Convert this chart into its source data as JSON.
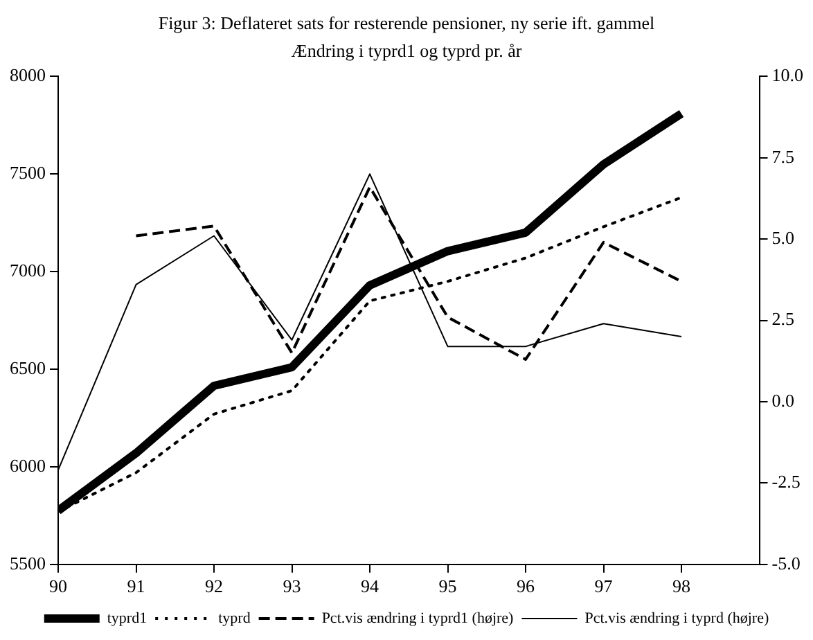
{
  "chart_data": {
    "type": "line",
    "title": "Figur 3: Deflateret sats for resterende pensioner, ny serie ift. gammel",
    "subtitle": "Ændring i typrd1 og typrd pr. år",
    "x": [
      90,
      91,
      92,
      93,
      94,
      95,
      96,
      97,
      98
    ],
    "xlim": [
      90,
      99
    ],
    "xticks": [
      90,
      91,
      92,
      93,
      94,
      95,
      96,
      97,
      98
    ],
    "ylim": [
      5500,
      8000
    ],
    "yticks": [
      5500,
      6000,
      6500,
      7000,
      7500,
      8000
    ],
    "y2lim": [
      -5,
      10
    ],
    "y2ticks": [
      {
        "value": -5,
        "label": "-5.0"
      },
      {
        "value": -2.5,
        "label": "-2.5"
      },
      {
        "value": 0,
        "label": "0.0"
      },
      {
        "value": 2.5,
        "label": "2.5"
      },
      {
        "value": 5,
        "label": "5.0"
      },
      {
        "value": 7.5,
        "label": "7.5"
      },
      {
        "value": 10,
        "label": "10.0"
      }
    ],
    "grid": false,
    "legend": "bottom",
    "marker": "none",
    "series": [
      {
        "name": "typrd1",
        "color": "#000000",
        "line_style": "solid",
        "values": [
          5775,
          6070,
          6415,
          6510,
          6930,
          7105,
          7200,
          7550,
          7810
        ]
      },
      {
        "name": "typrd",
        "color": "#000000",
        "line_style": "dotted",
        "values": [
          5770,
          5970,
          6270,
          6390,
          6850,
          6950,
          7070,
          7230,
          7380
        ]
      },
      {
        "name": "Pct.vis ændring i typrd1 (højre)",
        "color": "#000000",
        "line_style": "dashed",
        "axis": "y2",
        "values": [
          null,
          5.1,
          5.4,
          1.5,
          6.6,
          2.6,
          1.3,
          4.9,
          3.7
        ]
      },
      {
        "name": "Pct.vis ændring i typrd (højre)",
        "color": "#000000",
        "line_style": "solid",
        "axis": "y2",
        "values": [
          -2.1,
          3.6,
          5.1,
          1.9,
          7.0,
          1.7,
          1.7,
          2.4,
          2.0
        ]
      }
    ]
  }
}
